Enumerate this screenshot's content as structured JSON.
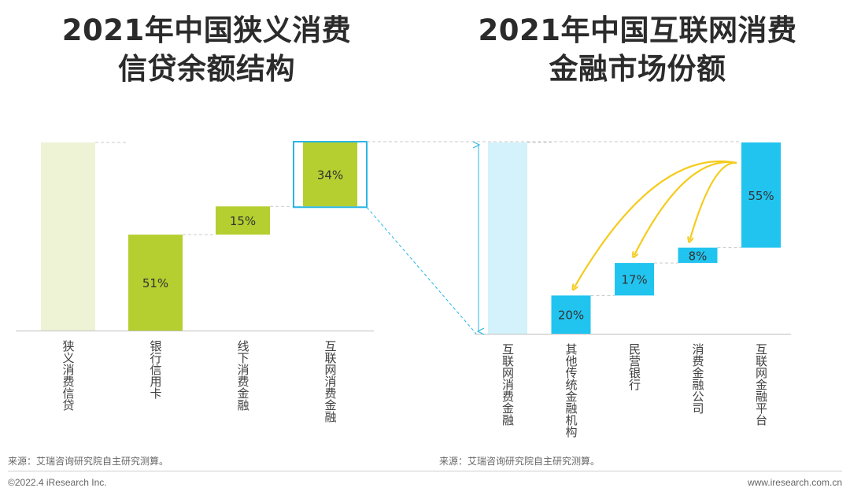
{
  "titles": {
    "left_line1": "2021年中国狭义消费",
    "left_line2": "信贷余额结构",
    "right_line1": "2021年中国互联网消费",
    "right_line2": "金融市场份额"
  },
  "colors": {
    "green": "#b4cf2f",
    "green_light": "#eef3d6",
    "blue": "#21c4ef",
    "blue_light": "#d3f2fb",
    "highlight": "#29b6e6",
    "arrow": "#f5cb1c"
  },
  "chart_data": [
    {
      "type": "bar",
      "subtype": "waterfall",
      "categories": [
        "狭义消费信贷",
        "银行信用卡",
        "线下消费金融",
        "互联网消费金融"
      ],
      "values": [
        100,
        51,
        15,
        34
      ],
      "data_labels": [
        "",
        "51%",
        "15%",
        "34%"
      ],
      "total_index": 0,
      "highlight_index": 3,
      "ylim": [
        0,
        100
      ]
    },
    {
      "type": "bar",
      "subtype": "waterfall",
      "categories": [
        "互联网消费金融",
        "其他传统金融机构",
        "民营银行",
        "消费金融公司",
        "互联网金融平台"
      ],
      "values": [
        100,
        20,
        17,
        8,
        55
      ],
      "data_labels": [
        "",
        "20%",
        "17%",
        "8%",
        "55%"
      ],
      "total_index": 0,
      "ylim": [
        0,
        100
      ]
    }
  ],
  "source": {
    "left": "来源：艾瑞咨询研究院自主研究测算。",
    "right": "来源：艾瑞咨询研究院自主研究测算。"
  },
  "footer": {
    "copyright": "©2022.4 iResearch Inc.",
    "website": "www.iresearch.com.cn"
  }
}
